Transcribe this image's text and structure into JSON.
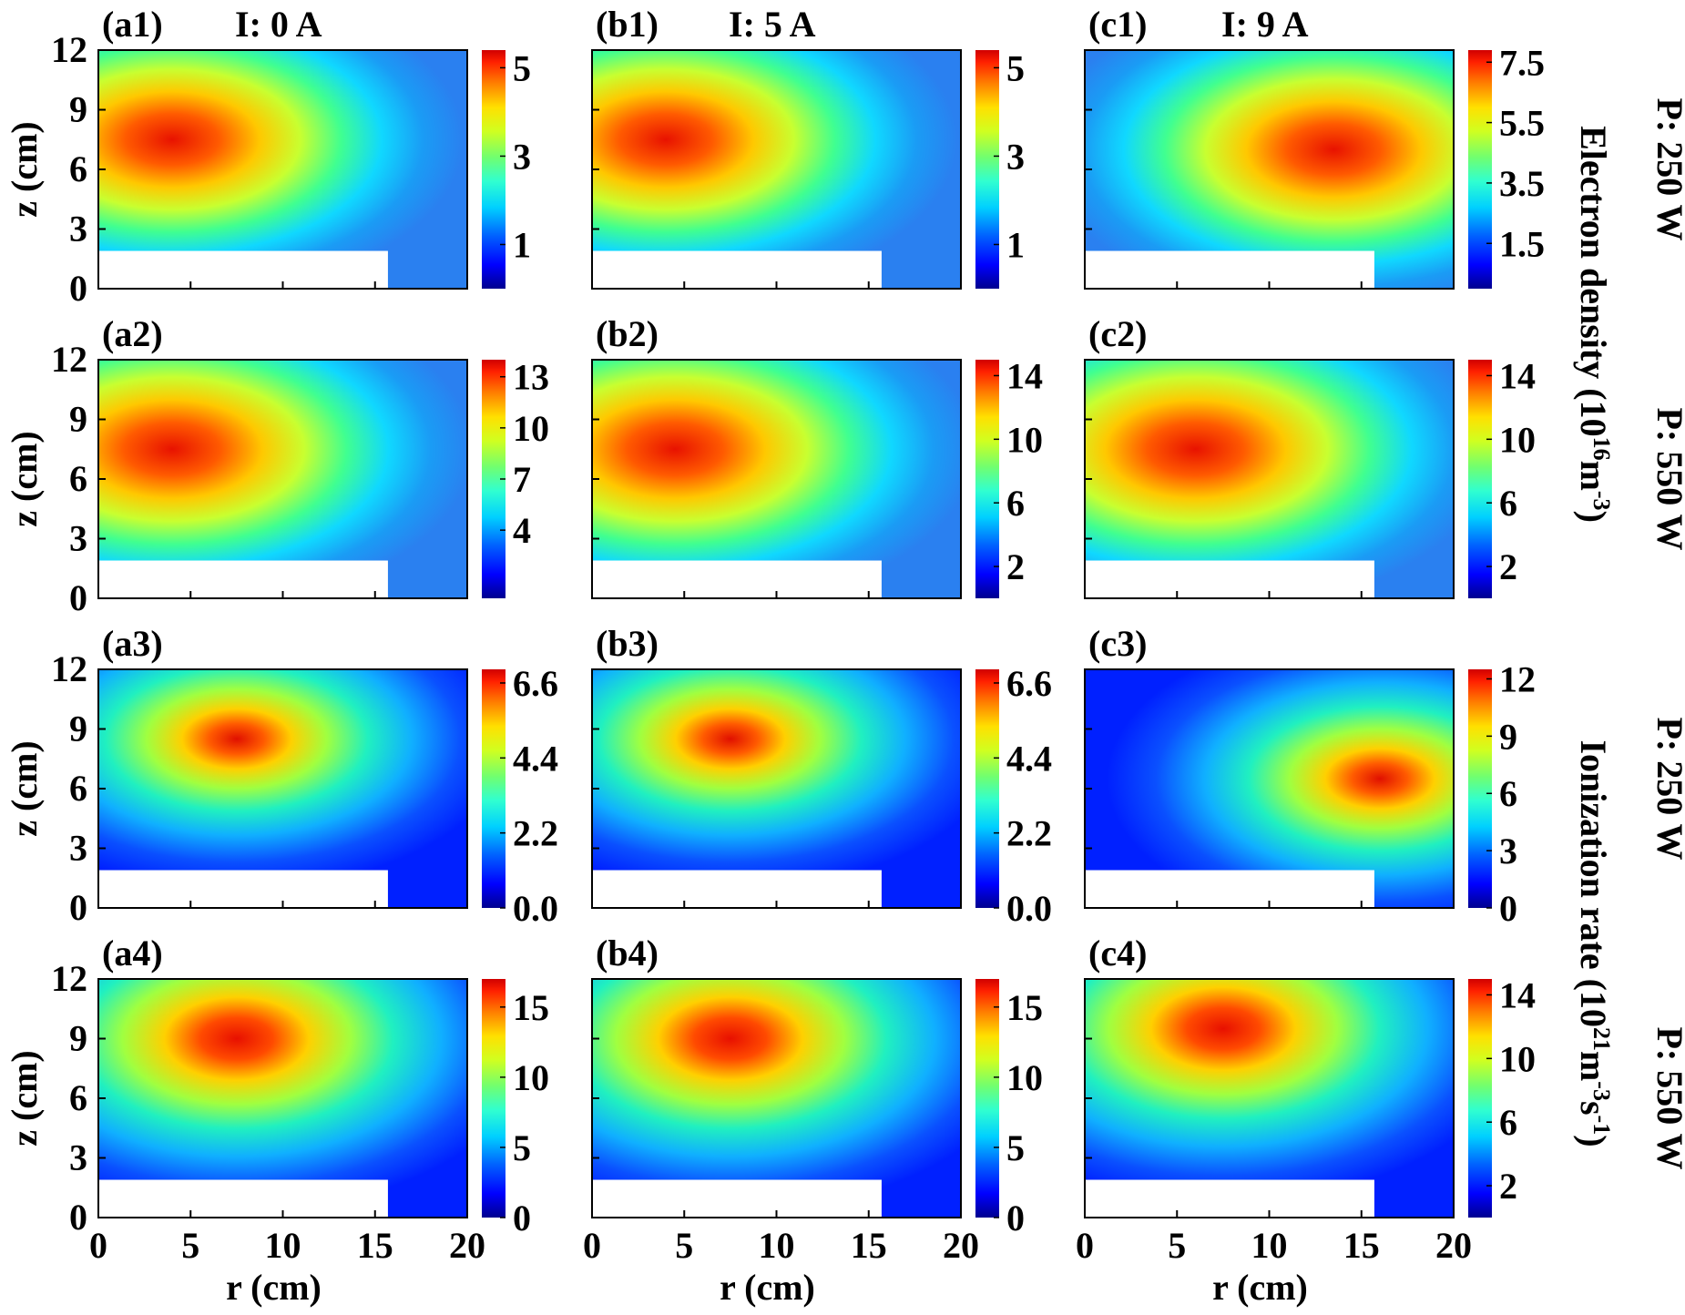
{
  "chart_data": {
    "type": "heatmap",
    "colormap": "jet",
    "xlabel": "r (cm)",
    "ylabel": "z (cm)",
    "xlim": [
      0,
      20
    ],
    "ylim": [
      0,
      12
    ],
    "x_ticks": [
      "0",
      "5",
      "10",
      "15",
      "20"
    ],
    "y_ticks": [
      "0",
      "3",
      "6",
      "9",
      "12"
    ],
    "obstacle": {
      "r_max": 15.7,
      "z_max": 1.9
    },
    "columns": [
      {
        "title": "I: 0 A",
        "current_A": 0
      },
      {
        "title": "I: 5 A",
        "current_A": 5
      },
      {
        "title": "I: 9 A",
        "current_A": 9
      }
    ],
    "rows": [
      {
        "power_label": "P: 250 W",
        "quantity": "Electron density"
      },
      {
        "power_label": "P: 550 W",
        "quantity": "Electron density"
      },
      {
        "power_label": "P: 250 W",
        "quantity": "Ionization rate"
      },
      {
        "power_label": "P: 550 W",
        "quantity": "Ionization rate"
      }
    ],
    "quantity_labels": [
      {
        "text": "Electron density (10",
        "sup1": "16",
        "mid": "m",
        "sup2": "-3",
        "end": ")"
      },
      {
        "text": "Ionization rate (10",
        "sup1": "21",
        "mid": "m",
        "sup2": "-3",
        "mid2": "s",
        "sup3": "-1",
        "end": ")"
      }
    ],
    "panels": [
      {
        "id": "(a1)",
        "row": 0,
        "col": 0,
        "colorbar_ticks": [
          1,
          3,
          5
        ],
        "vmax": 5.4,
        "hotspot": {
          "r": 4,
          "z": 7.5
        }
      },
      {
        "id": "(b1)",
        "row": 0,
        "col": 1,
        "colorbar_ticks": [
          1,
          3,
          5
        ],
        "vmax": 5.4,
        "hotspot": {
          "r": 4,
          "z": 7.5
        }
      },
      {
        "id": "(c1)",
        "row": 0,
        "col": 2,
        "colorbar_ticks": [
          1.5,
          3.5,
          5.5,
          7.5
        ],
        "vmax": 7.9,
        "hotspot": {
          "r": 13.5,
          "z": 7
        }
      },
      {
        "id": "(a2)",
        "row": 1,
        "col": 0,
        "colorbar_ticks": [
          4,
          7,
          10,
          13
        ],
        "vmax": 14,
        "hotspot": {
          "r": 4,
          "z": 7.5
        }
      },
      {
        "id": "(b2)",
        "row": 1,
        "col": 1,
        "colorbar_ticks": [
          2,
          6,
          10,
          14
        ],
        "vmax": 15,
        "hotspot": {
          "r": 4.5,
          "z": 7.5
        }
      },
      {
        "id": "(c2)",
        "row": 1,
        "col": 2,
        "colorbar_ticks": [
          2,
          6,
          10,
          14
        ],
        "vmax": 15,
        "hotspot": {
          "r": 6,
          "z": 7.5
        }
      },
      {
        "id": "(a3)",
        "row": 2,
        "col": 0,
        "colorbar_ticks": [
          0.0,
          2.2,
          4.4,
          6.6
        ],
        "vmax": 7,
        "hotspot": {
          "r": 7.5,
          "z": 8.5
        }
      },
      {
        "id": "(b3)",
        "row": 2,
        "col": 1,
        "colorbar_ticks": [
          0.0,
          2.2,
          4.4,
          6.6
        ],
        "vmax": 7,
        "hotspot": {
          "r": 7.5,
          "z": 8.5
        }
      },
      {
        "id": "(c3)",
        "row": 2,
        "col": 2,
        "colorbar_ticks": [
          0,
          3,
          6,
          9,
          12
        ],
        "vmax": 12.5,
        "hotspot": {
          "r": 16,
          "z": 6.5
        }
      },
      {
        "id": "(a4)",
        "row": 3,
        "col": 0,
        "colorbar_ticks": [
          0,
          5,
          10,
          15
        ],
        "vmax": 17,
        "hotspot": {
          "r": 7.5,
          "z": 9
        }
      },
      {
        "id": "(b4)",
        "row": 3,
        "col": 1,
        "colorbar_ticks": [
          0,
          5,
          10,
          15
        ],
        "vmax": 17,
        "hotspot": {
          "r": 7.5,
          "z": 9
        }
      },
      {
        "id": "(c4)",
        "row": 3,
        "col": 2,
        "colorbar_ticks": [
          2,
          6,
          10,
          14
        ],
        "vmax": 15,
        "hotspot": {
          "r": 7.5,
          "z": 9.5
        }
      }
    ]
  }
}
